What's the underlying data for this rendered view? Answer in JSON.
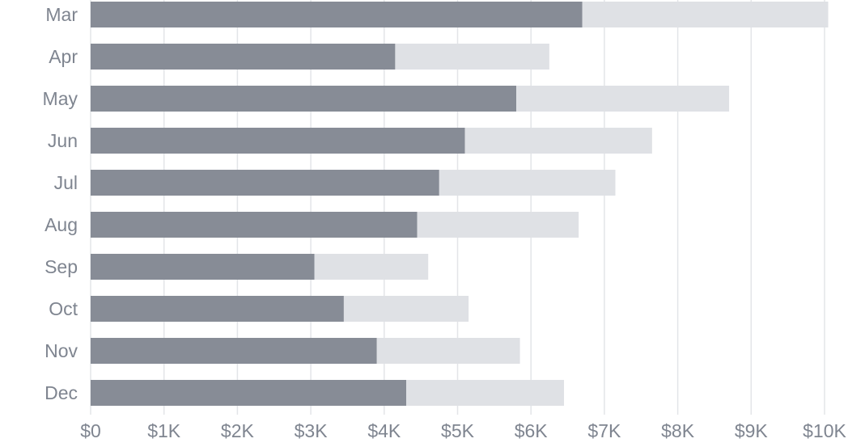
{
  "chart_data": {
    "type": "bar",
    "orientation": "horizontal",
    "stacked": true,
    "categories": [
      "Mar",
      "Apr",
      "May",
      "Jun",
      "Jul",
      "Aug",
      "Sep",
      "Oct",
      "Nov",
      "Dec"
    ],
    "series": [
      {
        "values": [
          6700,
          4150,
          5800,
          5100,
          4750,
          4450,
          3050,
          3450,
          3900,
          4300
        ]
      },
      {
        "values": [
          3350,
          2100,
          2900,
          2550,
          2400,
          2200,
          1550,
          1700,
          1950,
          2150
        ]
      }
    ],
    "x_ticks": [
      "$0",
      "$1K",
      "$2K",
      "$3K",
      "$4K",
      "$5K",
      "$6K",
      "$7K",
      "$8K",
      "$9K",
      "$10K"
    ],
    "xlim": [
      0,
      10000
    ],
    "grid": true,
    "colors": {
      "series_1": "#878c96",
      "series_2": "#dfe1e5",
      "grid": "#e3e5e8",
      "text": "#7f8590"
    }
  }
}
